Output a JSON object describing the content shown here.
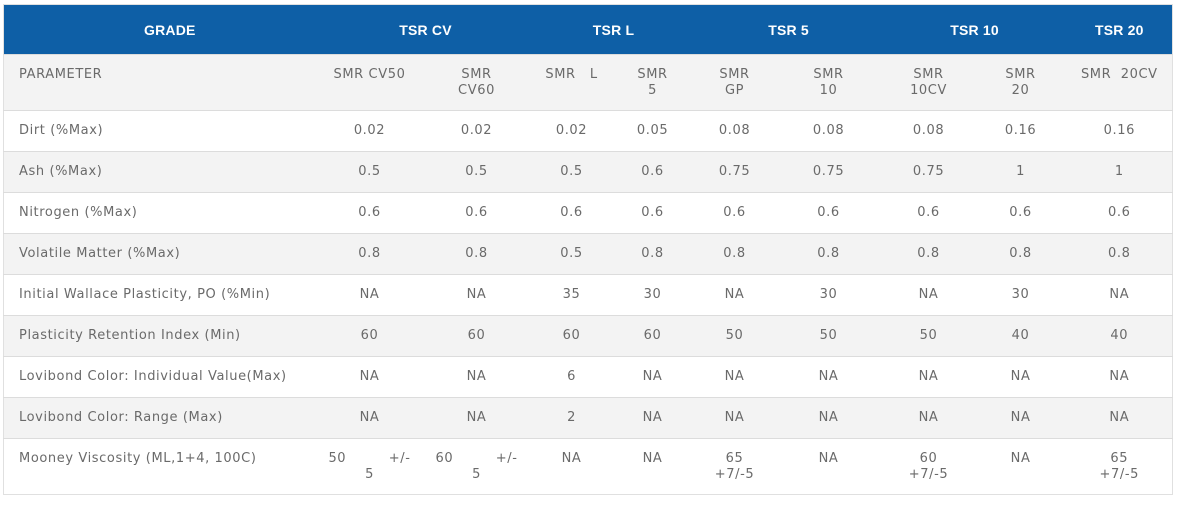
{
  "header": {
    "grade": "GRADE",
    "groups": [
      "TSR CV",
      "TSR L",
      "TSR 5",
      "TSR 10",
      "TSR 20"
    ]
  },
  "parameter_row": {
    "label": "PARAMETER",
    "cells": [
      "SMR CV50",
      "SMR\nCV60",
      "SMR   L",
      "SMR\n5",
      "SMR\nGP",
      "SMR\n10",
      "SMR\n10CV",
      "SMR\n20",
      "SMR  20CV"
    ]
  },
  "rows": [
    {
      "label": "Dirt (%Max)",
      "values": [
        "0.02",
        "0.02",
        "0.02",
        "0.05",
        "0.08",
        "0.08",
        "0.08",
        "0.16",
        "0.16"
      ]
    },
    {
      "label": "Ash (%Max)",
      "values": [
        "0.5",
        "0.5",
        "0.5",
        "0.6",
        "0.75",
        "0.75",
        "0.75",
        "1",
        "1"
      ]
    },
    {
      "label": "Nitrogen (%Max)",
      "values": [
        "0.6",
        "0.6",
        "0.6",
        "0.6",
        "0.6",
        "0.6",
        "0.6",
        "0.6",
        "0.6"
      ]
    },
    {
      "label": "Volatile Matter (%Max)",
      "values": [
        "0.8",
        "0.8",
        "0.5",
        "0.8",
        "0.8",
        "0.8",
        "0.8",
        "0.8",
        "0.8"
      ]
    },
    {
      "label": "Initial Wallace Plasticity, PO (%Min)",
      "values": [
        "NA",
        "NA",
        "35",
        "30",
        "NA",
        "30",
        "NA",
        "30",
        "NA"
      ]
    },
    {
      "label": "Plasticity Retention Index  (Min)",
      "values": [
        "60",
        "60",
        "60",
        "60",
        "50",
        "50",
        "50",
        "40",
        "40"
      ]
    },
    {
      "label": "Lovibond Color: Individual Value(Max)",
      "values": [
        "NA",
        "NA",
        "6",
        "NA",
        "NA",
        "NA",
        "NA",
        "NA",
        "NA"
      ]
    },
    {
      "label": "Lovibond Color: Range (Max)",
      "values": [
        "NA",
        "NA",
        "2",
        "NA",
        "NA",
        "NA",
        "NA",
        "NA",
        "NA"
      ]
    }
  ],
  "mooney_row": {
    "label": "Mooney Viscosity (ML,1+4, 100C)",
    "values": [
      "50         +/-\n5",
      "60         +/-\n5",
      "NA",
      "NA",
      "65\n+7/-5",
      "NA",
      "60\n+7/-5",
      "NA",
      "65\n+7/-5"
    ]
  }
}
